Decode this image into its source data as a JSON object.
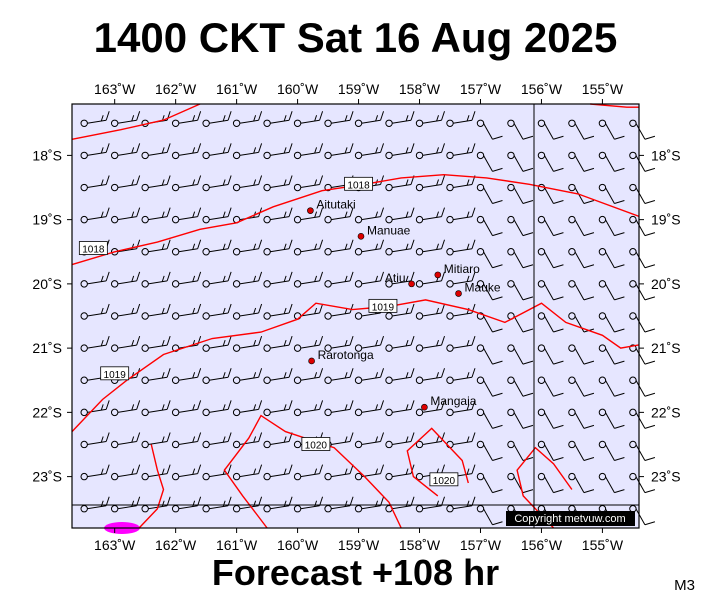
{
  "title": "1400 CKT Sat 16 Aug 2025",
  "footer": "Forecast +108 hr",
  "model": "M3",
  "copyright": "Copyright metvuw.com",
  "colors": {
    "ocean": "#e6e6ff",
    "isobar": "#ff0000",
    "barb": "#000000",
    "place": "#dd0000",
    "land": "#ff00ff"
  },
  "map": {
    "lon_min": -163.7,
    "lon_max": -154.4,
    "lat_min": -23.8,
    "lat_max": -17.2
  },
  "lon_ticks": [
    {
      "value": -163,
      "label": "163˚W"
    },
    {
      "value": -162,
      "label": "162˚W"
    },
    {
      "value": -161,
      "label": "161˚W"
    },
    {
      "value": -160,
      "label": "160˚W"
    },
    {
      "value": -159,
      "label": "159˚W"
    },
    {
      "value": -158,
      "label": "158˚W"
    },
    {
      "value": -157,
      "label": "157˚W"
    },
    {
      "value": -156,
      "label": "156˚W"
    },
    {
      "value": -155,
      "label": "155˚W"
    }
  ],
  "lat_ticks": [
    {
      "value": -18,
      "label": "18˚S"
    },
    {
      "value": -19,
      "label": "19˚S"
    },
    {
      "value": -20,
      "label": "20˚S"
    },
    {
      "value": -21,
      "label": "21˚S"
    },
    {
      "value": -22,
      "label": "22˚S"
    },
    {
      "value": -23,
      "label": "23˚S"
    }
  ],
  "places": [
    {
      "name": "Aitutaki",
      "lon": -159.79,
      "lat": -18.86
    },
    {
      "name": "Manuae",
      "lon": -158.96,
      "lat": -19.26
    },
    {
      "name": "Mitiaro",
      "lon": -157.7,
      "lat": -19.86
    },
    {
      "name": "Atiu",
      "lon": -158.13,
      "lat": -20.0
    },
    {
      "name": "Mauke",
      "lon": -157.36,
      "lat": -20.15
    },
    {
      "name": "Rarotonga",
      "lon": -159.77,
      "lat": -21.2
    },
    {
      "name": "Mangaia",
      "lon": -157.92,
      "lat": -21.92
    }
  ],
  "isobars": [
    {
      "label": "1018",
      "label_at": {
        "lon": -159.0,
        "lat": -18.45
      },
      "label_at2": {
        "lon": -163.35,
        "lat": -19.45
      },
      "points": [
        [
          -163.7,
          -19.7
        ],
        [
          -163.0,
          -19.5
        ],
        [
          -162.3,
          -19.35
        ],
        [
          -161.6,
          -19.15
        ],
        [
          -161.0,
          -19.05
        ],
        [
          -160.4,
          -18.8
        ],
        [
          -159.6,
          -18.55
        ],
        [
          -158.9,
          -18.45
        ],
        [
          -158.3,
          -18.35
        ],
        [
          -157.6,
          -18.3
        ],
        [
          -156.9,
          -18.35
        ],
        [
          -156.2,
          -18.45
        ],
        [
          -155.4,
          -18.6
        ],
        [
          -154.4,
          -18.95
        ]
      ]
    },
    {
      "label": "1019",
      "label_at": {
        "lon": -158.6,
        "lat": -20.35
      },
      "label_at2": {
        "lon": -163.0,
        "lat": -21.4
      },
      "points": [
        [
          -163.7,
          -22.3
        ],
        [
          -163.2,
          -21.8
        ],
        [
          -162.8,
          -21.5
        ],
        [
          -162.2,
          -21.1
        ],
        [
          -161.4,
          -20.85
        ],
        [
          -160.6,
          -20.75
        ],
        [
          -160.0,
          -20.55
        ],
        [
          -159.7,
          -20.3
        ],
        [
          -159.1,
          -20.4
        ],
        [
          -158.5,
          -20.35
        ],
        [
          -157.9,
          -20.25
        ],
        [
          -157.2,
          -20.4
        ],
        [
          -156.6,
          -20.6
        ],
        [
          -156.0,
          -20.3
        ],
        [
          -155.6,
          -20.6
        ],
        [
          -155.0,
          -20.8
        ],
        [
          -154.7,
          -21.0
        ],
        [
          -154.4,
          -20.95
        ]
      ]
    },
    {
      "label": "1020",
      "label_at": {
        "lon": -159.7,
        "lat": -22.5
      },
      "label_at2": {
        "lon": -157.6,
        "lat": -23.05
      },
      "points": [
        [
          -160.5,
          -23.8
        ],
        [
          -160.9,
          -23.3
        ],
        [
          -161.2,
          -22.9
        ],
        [
          -160.8,
          -22.4
        ],
        [
          -160.6,
          -22.05
        ],
        [
          -160.2,
          -22.3
        ],
        [
          -159.4,
          -22.55
        ],
        [
          -158.9,
          -23.0
        ],
        [
          -158.5,
          -23.4
        ],
        [
          -158.3,
          -23.8
        ]
      ]
    },
    {
      "label": "",
      "label_at": null,
      "label_at2": null,
      "points": [
        [
          -162.6,
          -23.8
        ],
        [
          -162.3,
          -23.5
        ],
        [
          -162.2,
          -23.2
        ],
        [
          -162.3,
          -22.9
        ],
        [
          -162.4,
          -22.5
        ]
      ]
    },
    {
      "label": "",
      "label_at": null,
      "label_at2": null,
      "points": [
        [
          -157.7,
          -23.3
        ],
        [
          -158.1,
          -23.0
        ],
        [
          -158.2,
          -22.6
        ],
        [
          -157.8,
          -22.25
        ],
        [
          -157.3,
          -22.75
        ],
        [
          -157.2,
          -23.1
        ]
      ]
    },
    {
      "label": "",
      "label_at": null,
      "label_at2": null,
      "points": [
        [
          -155.8,
          -23.8
        ],
        [
          -156.3,
          -23.3
        ],
        [
          -156.4,
          -22.9
        ],
        [
          -156.1,
          -22.55
        ],
        [
          -155.8,
          -22.8
        ],
        [
          -155.5,
          -23.2
        ]
      ]
    },
    {
      "label": "",
      "label_at": null,
      "label_at2": null,
      "points": [
        [
          -161.6,
          -17.2
        ],
        [
          -162.2,
          -17.45
        ],
        [
          -162.9,
          -17.6
        ],
        [
          -163.7,
          -17.75
        ]
      ]
    },
    {
      "label": "",
      "label_at": null,
      "label_at2": null,
      "points": [
        [
          -155.2,
          -17.2
        ],
        [
          -154.6,
          -17.25
        ],
        [
          -154.4,
          -17.25
        ]
      ]
    }
  ],
  "wind": {
    "lon_start": -163.5,
    "lat_start": -17.5,
    "step_lon": 0.5,
    "step_lat": 0.5,
    "cols": 19,
    "rows": 13
  }
}
